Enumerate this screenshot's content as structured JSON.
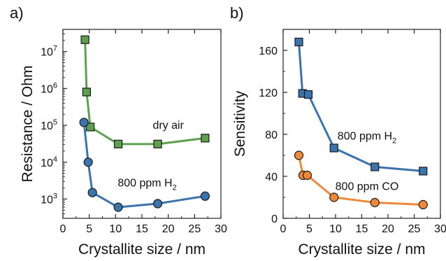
{
  "chart_data": [
    {
      "panel_label": "a)",
      "type": "line",
      "xlabel": "Crystallite size / nm",
      "ylabel": "Resistance / Ohm",
      "y_scale": "log",
      "xlim": [
        0,
        30
      ],
      "ylim": [
        300,
        40000000
      ],
      "x_ticks": [
        0,
        5,
        10,
        15,
        20,
        25,
        30
      ],
      "x_tick_labels": [
        "0",
        "5",
        "10",
        "15",
        "20",
        "25",
        "30"
      ],
      "y_ticks": [
        1000,
        10000,
        100000,
        1000000,
        10000000
      ],
      "y_tick_labels": [
        {
          "base": "10",
          "exp": "3"
        },
        {
          "base": "10",
          "exp": "4"
        },
        {
          "base": "10",
          "exp": "5"
        },
        {
          "base": "10",
          "exp": "6"
        },
        {
          "base": "10",
          "exp": "7"
        }
      ],
      "series": [
        {
          "name": "dry air",
          "label_text": "dry air",
          "label_sub": "",
          "label_at": [
            20,
            80000
          ],
          "color": "#5fa04e",
          "marker": "square",
          "x": [
            4.2,
            4.5,
            5.2,
            10.5,
            18,
            27
          ],
          "y": [
            21000000,
            800000,
            90000,
            31000,
            31000,
            45000
          ]
        },
        {
          "name": "800 ppm H2",
          "label_text": "800 ppm H",
          "label_sub": "2",
          "label_at": [
            16,
            2200
          ],
          "color": "#3b74ac",
          "marker": "circle",
          "x": [
            4,
            4.8,
            5.6,
            10.5,
            18,
            27
          ],
          "y": [
            120000,
            10000,
            1500,
            600,
            750,
            1200
          ]
        }
      ]
    },
    {
      "panel_label": "b)",
      "type": "line",
      "xlabel": "Crystallite size / nm",
      "ylabel": "Sensitivity",
      "y_scale": "linear",
      "xlim": [
        0,
        30
      ],
      "ylim": [
        0,
        180
      ],
      "x_ticks": [
        0,
        5,
        10,
        15,
        20,
        25,
        30
      ],
      "x_tick_labels": [
        "0",
        "5",
        "10",
        "15",
        "20",
        "25",
        "30"
      ],
      "y_ticks": [
        0,
        40,
        80,
        120,
        160
      ],
      "y_tick_labels": [
        "0",
        "40",
        "80",
        "120",
        "160"
      ],
      "series": [
        {
          "name": "800 ppm H2",
          "label_text": "800 ppm H",
          "label_sub": "2",
          "label_at": [
            16,
            75
          ],
          "color": "#3b74ac",
          "marker": "square",
          "x": [
            3,
            3.7,
            4.8,
            9.7,
            17.5,
            26.7
          ],
          "y": [
            168,
            119,
            118,
            67,
            49,
            45
          ]
        },
        {
          "name": "800 ppm CO",
          "label_text": "800 ppm CO",
          "label_sub": "",
          "label_at": [
            16,
            27
          ],
          "color": "#f0883a",
          "marker": "circle",
          "x": [
            3,
            3.8,
            4.6,
            9.7,
            17.5,
            26.7
          ],
          "y": [
            60,
            41,
            41,
            20,
            15,
            13
          ]
        }
      ]
    }
  ]
}
